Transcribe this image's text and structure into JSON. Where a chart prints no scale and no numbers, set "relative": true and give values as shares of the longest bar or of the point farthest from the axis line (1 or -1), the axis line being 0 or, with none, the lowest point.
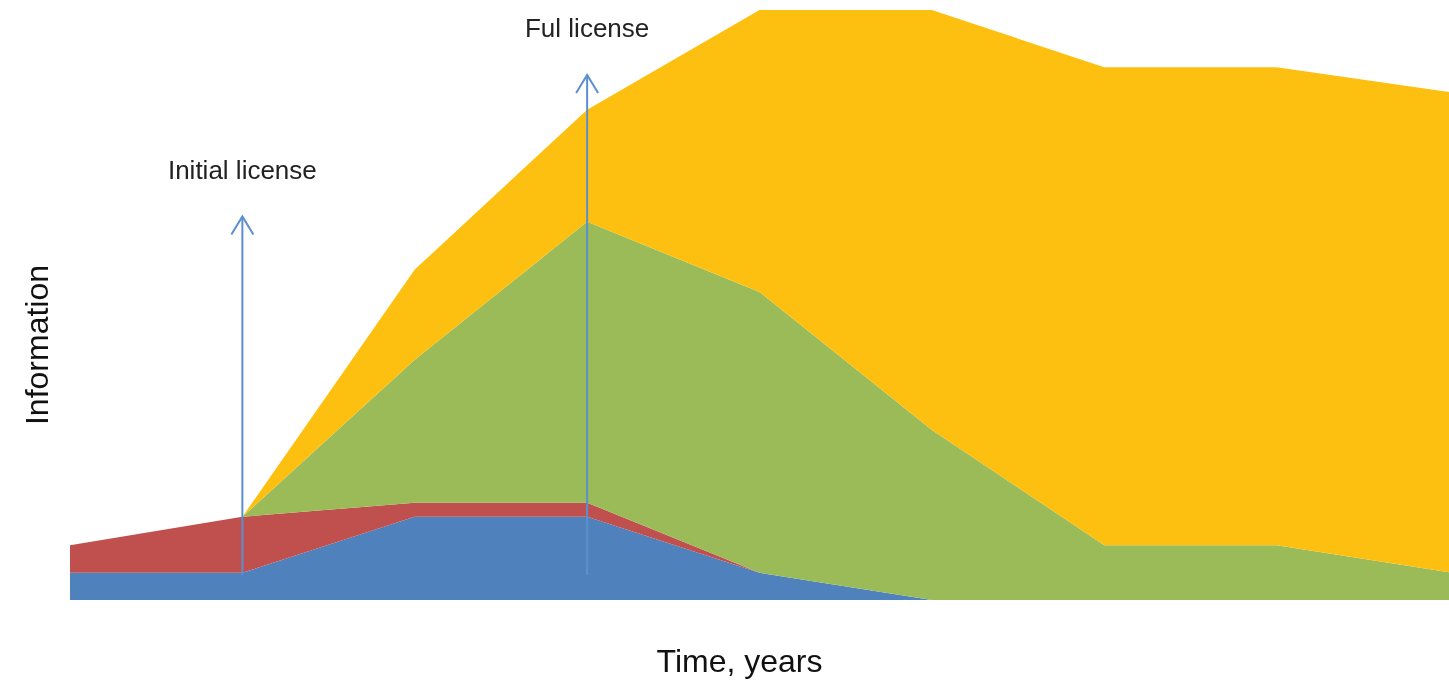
{
  "chart_data": {
    "type": "area",
    "stacked": true,
    "relative": true,
    "xlabel": "Time, years",
    "ylabel": "Information",
    "categories": [
      null,
      null,
      null,
      null,
      null,
      null,
      null,
      null,
      null
    ],
    "series": [
      {
        "color": "#4f81bd",
        "values": [
          0.046,
          0.046,
          0.141,
          0.141,
          0.046,
          0,
          0,
          0,
          0
        ]
      },
      {
        "color": "#c0504d",
        "values": [
          0.047,
          0.095,
          0.024,
          0.024,
          0,
          0,
          0,
          0,
          0
        ]
      },
      {
        "color": "#9bbb59",
        "values": [
          0,
          0,
          0.242,
          0.476,
          0.476,
          0.288,
          0.093,
          0.093,
          0.047
        ]
      },
      {
        "color": "#fdc010",
        "values": [
          0,
          0,
          0.153,
          0.19,
          0.478,
          0.712,
          0.81,
          0.81,
          0.814
        ]
      }
    ],
    "annotations": [
      "Initial license",
      "Ful license"
    ]
  }
}
